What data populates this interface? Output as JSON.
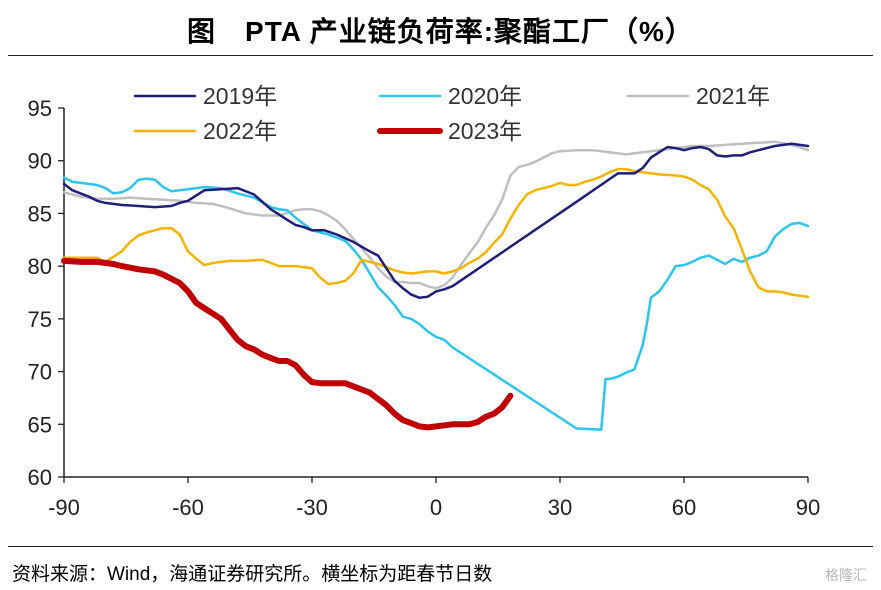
{
  "header": {
    "title": "图　PTA 产业链负荷率:聚酯工厂（%）"
  },
  "footer": {
    "source": "资料来源：Wind，海通证券研究所。横坐标为距春节日数",
    "watermark": "格隆汇"
  },
  "chart_data": {
    "type": "line",
    "xlabel": "",
    "ylabel": "",
    "xlim": [
      -90,
      90
    ],
    "ylim": [
      60,
      95
    ],
    "xticks": [
      -90,
      -60,
      -30,
      0,
      30,
      60,
      90
    ],
    "yticks": [
      60,
      65,
      70,
      75,
      80,
      85,
      90,
      95
    ],
    "xtick_labels": [
      "-90",
      "-60",
      "-30",
      "0",
      "30",
      "60",
      "90"
    ],
    "ytick_labels": [
      "60",
      "65",
      "70",
      "75",
      "80",
      "85",
      "90",
      "95"
    ],
    "grid": false,
    "legend": "top",
    "series": [
      {
        "name": "2019年",
        "color": "#1f1f7a",
        "width": 2.5,
        "x": [
          -90,
          -88,
          -86,
          -84,
          -82,
          -80,
          -76,
          -72,
          -68,
          -64,
          -62,
          -60,
          -56,
          -52,
          -48,
          -44,
          -40,
          -36,
          -34,
          -32,
          -30,
          -27,
          -24,
          -20,
          -16,
          -14,
          -12,
          -10,
          -8,
          -6,
          -4,
          -2,
          0,
          2,
          4,
          34,
          44,
          48,
          50,
          52,
          56,
          58,
          60,
          62,
          64,
          66,
          68,
          70,
          72,
          74,
          76,
          78,
          80,
          82,
          84,
          86,
          88,
          90
        ],
        "y": [
          87.8,
          87.2,
          86.9,
          86.6,
          86.2,
          86.0,
          85.8,
          85.7,
          85.6,
          85.7,
          86.0,
          86.2,
          87.2,
          87.3,
          87.4,
          86.8,
          85.4,
          84.4,
          83.9,
          83.7,
          83.4,
          83.4,
          83.0,
          82.3,
          81.4,
          81.0,
          79.8,
          78.6,
          77.9,
          77.3,
          77.0,
          77.1,
          77.6,
          77.8,
          78.1,
          86.1,
          88.8,
          88.8,
          89.3,
          90.3,
          91.3,
          91.2,
          91.0,
          91.2,
          91.3,
          91.1,
          90.5,
          90.4,
          90.5,
          90.5,
          90.8,
          91.0,
          91.2,
          91.4,
          91.5,
          91.6,
          91.5,
          91.4
        ]
      },
      {
        "name": "2020年",
        "color": "#2ec4f0",
        "width": 2.5,
        "x": [
          -90,
          -88,
          -86,
          -84,
          -82,
          -80,
          -78,
          -76,
          -74,
          -72,
          -70,
          -68,
          -66,
          -64,
          -60,
          -56,
          -52,
          -48,
          -44,
          -40,
          -38,
          -36,
          -34,
          -30,
          -26,
          -24,
          -22,
          -20,
          -18,
          -16,
          -14,
          -12,
          -10,
          -8,
          -6,
          -4,
          -2,
          0,
          2,
          4,
          34,
          40,
          41,
          42,
          44,
          46,
          48,
          50,
          51,
          52,
          54,
          56,
          58,
          60,
          62,
          64,
          66,
          68,
          70,
          72,
          74,
          76,
          78,
          80,
          82,
          84,
          86,
          88,
          90
        ],
        "y": [
          88.4,
          88.0,
          87.9,
          87.8,
          87.7,
          87.4,
          86.9,
          87.0,
          87.4,
          88.2,
          88.3,
          88.2,
          87.5,
          87.1,
          87.3,
          87.5,
          87.4,
          86.9,
          86.5,
          85.6,
          85.4,
          85.3,
          84.6,
          83.4,
          83.0,
          82.7,
          82.4,
          81.6,
          80.6,
          79.3,
          78.0,
          77.2,
          76.3,
          75.2,
          75.0,
          74.5,
          73.8,
          73.3,
          73.0,
          72.3,
          64.6,
          64.5,
          69.3,
          69.3,
          69.5,
          69.9,
          70.2,
          72.5,
          74.5,
          77.0,
          77.6,
          78.7,
          80.0,
          80.1,
          80.4,
          80.8,
          81.0,
          80.6,
          80.2,
          80.7,
          80.4,
          80.8,
          81.0,
          81.4,
          82.8,
          83.5,
          84.0,
          84.1,
          83.8
        ]
      },
      {
        "name": "2021年",
        "color": "#bfbfbf",
        "width": 2.5,
        "x": [
          -90,
          -86,
          -82,
          -78,
          -74,
          -70,
          -66,
          -62,
          -58,
          -54,
          -50,
          -46,
          -42,
          -38,
          -34,
          -32,
          -30,
          -28,
          -26,
          -24,
          -22,
          -20,
          -18,
          -16,
          -14,
          -12,
          -10,
          -8,
          -6,
          -4,
          -2,
          0,
          2,
          4,
          6,
          8,
          10,
          12,
          14,
          16,
          18,
          20,
          22,
          24,
          26,
          28,
          30,
          34,
          38,
          42,
          46,
          50,
          54,
          58,
          62,
          66,
          70,
          74,
          78,
          82,
          86,
          88,
          90
        ],
        "y": [
          87.0,
          86.6,
          86.4,
          86.4,
          86.5,
          86.4,
          86.3,
          86.2,
          86.0,
          85.9,
          85.5,
          85.0,
          84.8,
          84.8,
          85.3,
          85.4,
          85.4,
          85.2,
          84.8,
          84.3,
          83.5,
          82.6,
          81.7,
          80.8,
          79.8,
          79.0,
          78.5,
          78.5,
          78.4,
          78.4,
          78.1,
          77.9,
          78.2,
          78.9,
          80.1,
          81.2,
          82.2,
          83.6,
          84.8,
          86.3,
          88.6,
          89.4,
          89.6,
          89.9,
          90.3,
          90.7,
          90.9,
          91.0,
          91.0,
          90.8,
          90.6,
          90.8,
          91.0,
          91.2,
          91.4,
          91.4,
          91.5,
          91.6,
          91.7,
          91.8,
          91.5,
          91.3,
          91.0
        ]
      },
      {
        "name": "2022年",
        "color": "#f5b300",
        "width": 2.5,
        "x": [
          -90,
          -86,
          -82,
          -80,
          -78,
          -76,
          -74,
          -72,
          -70,
          -68,
          -66,
          -64,
          -62,
          -60,
          -58,
          -56,
          -54,
          -50,
          -46,
          -42,
          -38,
          -34,
          -30,
          -28,
          -26,
          -24,
          -22,
          -20,
          -18,
          -16,
          -14,
          -12,
          -10,
          -8,
          -6,
          -4,
          -2,
          0,
          2,
          4,
          6,
          8,
          10,
          12,
          14,
          16,
          18,
          20,
          22,
          24,
          26,
          28,
          30,
          32,
          34,
          36,
          38,
          40,
          42,
          44,
          46,
          48,
          50,
          54,
          58,
          60,
          62,
          64,
          66,
          68,
          70,
          72,
          74,
          76,
          78,
          80,
          82,
          84,
          86,
          88,
          90
        ],
        "y": [
          80.8,
          80.8,
          80.8,
          80.4,
          80.9,
          81.4,
          82.3,
          82.9,
          83.2,
          83.4,
          83.6,
          83.6,
          83.0,
          81.4,
          80.7,
          80.1,
          80.3,
          80.5,
          80.5,
          80.6,
          80.0,
          80.0,
          79.8,
          78.9,
          78.3,
          78.4,
          78.6,
          79.3,
          80.6,
          80.4,
          80.2,
          79.9,
          79.6,
          79.4,
          79.3,
          79.4,
          79.5,
          79.5,
          79.3,
          79.5,
          79.8,
          80.3,
          80.7,
          81.3,
          82.2,
          83.0,
          84.5,
          85.8,
          86.8,
          87.2,
          87.4,
          87.6,
          87.9,
          87.7,
          87.7,
          88.0,
          88.2,
          88.5,
          88.9,
          89.2,
          89.2,
          89.0,
          88.9,
          88.7,
          88.6,
          88.5,
          88.2,
          87.7,
          87.3,
          86.3,
          84.7,
          83.6,
          81.6,
          79.5,
          78.0,
          77.6,
          77.6,
          77.5,
          77.3,
          77.2,
          77.1
        ]
      },
      {
        "name": "2023年",
        "color": "#c00000",
        "width": 6,
        "x": [
          -90,
          -86,
          -82,
          -78,
          -76,
          -72,
          -68,
          -66,
          -64,
          -62,
          -60,
          -58,
          -56,
          -54,
          -52,
          -50,
          -48,
          -46,
          -44,
          -42,
          -40,
          -38,
          -36,
          -34,
          -32,
          -30,
          -28,
          -26,
          -24,
          -22,
          -20,
          -18,
          -16,
          -14,
          -12,
          -10,
          -8,
          -6,
          -4,
          -2,
          0,
          2,
          4,
          6,
          8,
          10,
          12,
          14,
          16,
          18
        ],
        "y": [
          80.5,
          80.4,
          80.4,
          80.2,
          80.0,
          79.7,
          79.5,
          79.2,
          78.8,
          78.4,
          77.6,
          76.5,
          76.0,
          75.5,
          75.0,
          74.0,
          73.0,
          72.4,
          72.1,
          71.6,
          71.3,
          71.0,
          71.0,
          70.6,
          69.7,
          69.0,
          68.9,
          68.9,
          68.9,
          68.9,
          68.6,
          68.3,
          68.0,
          67.4,
          66.8,
          66.0,
          65.4,
          65.1,
          64.8,
          64.7,
          64.8,
          64.9,
          65.0,
          65.0,
          65.0,
          65.2,
          65.7,
          66.0,
          66.6,
          67.7
        ]
      }
    ]
  }
}
